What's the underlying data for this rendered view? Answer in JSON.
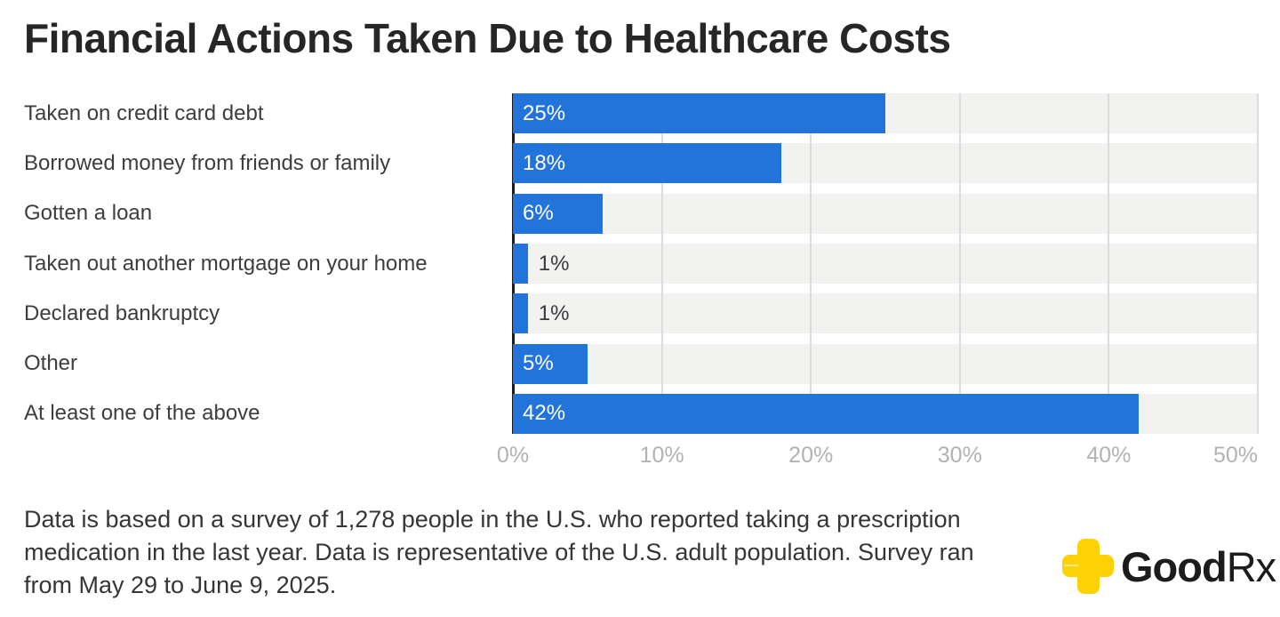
{
  "header": {
    "title": "Financial Actions Taken Due to Healthcare Costs"
  },
  "chart_data": {
    "type": "bar",
    "orientation": "horizontal",
    "title": "Financial Actions Taken Due to Healthcare Costs",
    "categories": [
      "Taken on credit card debt",
      "Borrowed money from friends or family",
      "Gotten a loan",
      "Taken out another mortgage on your home",
      "Declared bankruptcy",
      "Other",
      "At least one of the above"
    ],
    "values": [
      25,
      18,
      6,
      1,
      1,
      5,
      42
    ],
    "value_labels": [
      "25%",
      "18%",
      "6%",
      "1%",
      "1%",
      "5%",
      "42%"
    ],
    "xlabel": "",
    "ylabel": "",
    "xlim": [
      0,
      50
    ],
    "x_ticks": [
      {
        "value": 0,
        "label": "0%"
      },
      {
        "value": 10,
        "label": "10%"
      },
      {
        "value": 20,
        "label": "20%"
      },
      {
        "value": 30,
        "label": "30%"
      },
      {
        "value": 40,
        "label": "40%"
      },
      {
        "value": 50,
        "label": "50%"
      }
    ],
    "grid": "vertical",
    "legend": "none",
    "bar_color": "#2273da",
    "track_color": "#f2f2f1",
    "label_inside_color": "#ffffff",
    "label_outside_color": "#3a3a3a"
  },
  "footer": {
    "lines": [
      "Data is based on a survey of 1,278 people in the U.S. who reported taking a prescription",
      "medication in the last year. Data is representative of the U.S. adult population. Survey ran",
      "from May 29 to June 9, 2025."
    ]
  },
  "brand": {
    "bold": "Good",
    "rest": "Rx",
    "yellow": "#fcd205",
    "text_color": "#1c1c1f"
  }
}
